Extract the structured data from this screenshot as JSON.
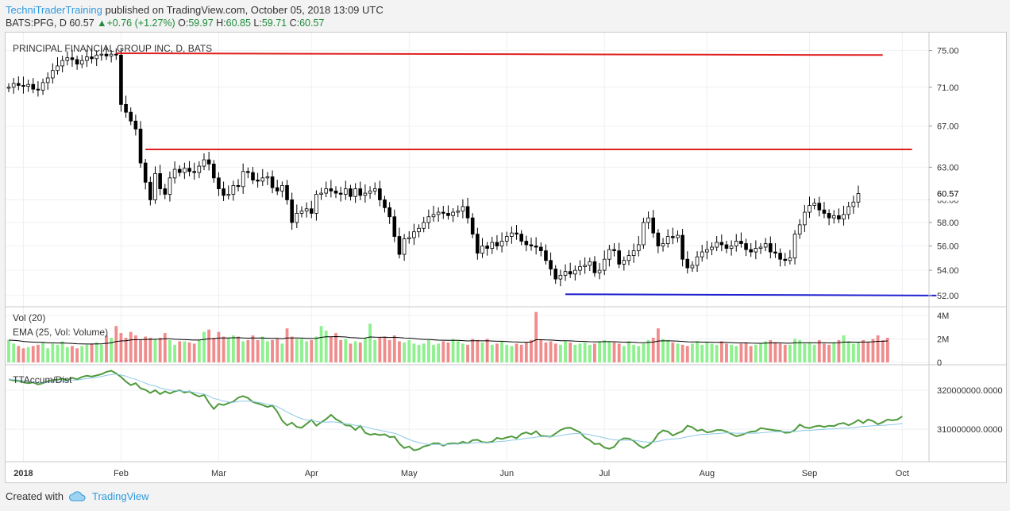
{
  "header": {
    "author": "TechniTraderTraining",
    "published_text": " published on TradingView.com, October 05, 2018 13:09 UTC",
    "symbol": "BATS:PFG, D",
    "last": "60.57",
    "change": "+0.76 (+1.27%)",
    "o_label": "O:",
    "o_value": "59.97",
    "h_label": "H:",
    "h_value": "60.85",
    "l_label": "L:",
    "l_value": "59.71",
    "c_label": "C:",
    "c_value": "60.57",
    "up_icon": "triangle-up-icon"
  },
  "footer": {
    "created_with": "Created with",
    "brand": "TradingView",
    "icon": "cloud-icon"
  },
  "colors": {
    "up": "#ffffff",
    "down": "#000000",
    "wick": "#000000",
    "vol_up": "#8ef08e",
    "vol_down": "#f08c8c",
    "accum": "#4e9a3a",
    "accum_ma": "#8cc8e8",
    "resistance": "#e02020",
    "support": "#2020d0",
    "ema": "#000000"
  },
  "chart_data": [
    {
      "type": "candlestick",
      "title": "PRINCIPAL FINANCIAL GROUP INC, D, BATS",
      "last_price_label": "60.57",
      "y_ticks": [
        "75.00",
        "71.00",
        "67.00",
        "63.00",
        "60.00",
        "58.00",
        "56.00",
        "54.00",
        "52.00"
      ],
      "y_scale": "log",
      "ylim": [
        51.5,
        76.5
      ],
      "grid": true,
      "x_tick_labels": [
        "2018",
        "Feb",
        "Mar",
        "Apr",
        "May",
        "Jun",
        "Jul",
        "Aug",
        "Sep",
        "Oct"
      ],
      "x_tick_index": [
        3,
        23,
        43,
        62,
        82,
        102,
        122,
        143,
        164,
        183
      ],
      "close": [
        71.0,
        71.4,
        71.2,
        71.1,
        71.3,
        70.8,
        70.7,
        71.5,
        72.0,
        72.8,
        73.3,
        73.9,
        74.2,
        74.0,
        73.5,
        73.9,
        74.3,
        74.1,
        74.5,
        74.6,
        74.4,
        74.6,
        74.5,
        69.2,
        68.4,
        67.5,
        66.7,
        63.4,
        61.6,
        60.0,
        62.4,
        61.0,
        60.5,
        62.0,
        62.8,
        62.5,
        62.9,
        62.6,
        62.5,
        63.1,
        63.7,
        63.3,
        62.0,
        61.0,
        60.4,
        60.5,
        61.3,
        61.2,
        62.6,
        62.5,
        61.8,
        61.7,
        62.0,
        62.1,
        61.1,
        60.8,
        61.3,
        60.0,
        58.0,
        58.8,
        59.0,
        59.2,
        58.8,
        60.5,
        60.6,
        61.0,
        60.8,
        60.6,
        60.5,
        61.0,
        60.3,
        61.0,
        60.4,
        60.6,
        60.8,
        61.0,
        60.0,
        59.3,
        58.5,
        56.8,
        55.3,
        56.6,
        56.7,
        57.2,
        57.5,
        58.0,
        58.5,
        58.7,
        58.9,
        58.8,
        58.6,
        58.9,
        59.0,
        59.4,
        58.4,
        57.0,
        55.4,
        56.0,
        55.8,
        56.3,
        56.0,
        56.4,
        56.8,
        57.1,
        57.0,
        56.4,
        56.1,
        56.0,
        55.9,
        55.6,
        54.8,
        54.1,
        53.3,
        53.6,
        53.9,
        53.7,
        54.0,
        54.3,
        54.4,
        54.7,
        53.8,
        54.0,
        54.9,
        55.7,
        55.6,
        54.5,
        54.8,
        55.2,
        55.6,
        56.1,
        58.0,
        58.4,
        57.1,
        56.0,
        56.2,
        56.8,
        56.7,
        56.9,
        54.9,
        54.2,
        54.4,
        55.1,
        55.5,
        55.7,
        55.9,
        56.3,
        56.1,
        55.8,
        56.0,
        56.4,
        56.2,
        55.7,
        55.5,
        55.8,
        55.9,
        56.2,
        55.5,
        55.4,
        54.9,
        54.8,
        55.0,
        57.0,
        57.8,
        58.9,
        59.5,
        59.7,
        59.1,
        58.8,
        58.4,
        58.6,
        58.3,
        58.7,
        59.4,
        59.8,
        60.57
      ],
      "volume_panel": {
        "title": "Vol (20)",
        "ema_label": "EMA (25, Vol: Volume)",
        "y_ticks": [
          "4M",
          "2M",
          "0"
        ],
        "ylim": [
          0,
          4200000
        ],
        "values": [
          1.9,
          1.6,
          1.4,
          1.2,
          1.3,
          1.4,
          1.5,
          1.7,
          1.2,
          1.6,
          1.5,
          1.8,
          1.3,
          1.4,
          1.2,
          1.4,
          1.5,
          1.6,
          1.7,
          1.5,
          2.3,
          2.1,
          3.1,
          2.5,
          2.1,
          2.6,
          2.3,
          1.9,
          2.2,
          2.1,
          2.0,
          2.1,
          2.5,
          1.9,
          1.5,
          1.8,
          1.8,
          1.7,
          1.6,
          1.9,
          2.6,
          2.8,
          2.1,
          2.6,
          2.2,
          2.1,
          2.3,
          2.2,
          1.8,
          1.9,
          2.3,
          1.9,
          2.2,
          1.8,
          1.9,
          2.0,
          1.6,
          2.9,
          2.2,
          2.0,
          2.0,
          1.8,
          1.9,
          2.2,
          3.1,
          2.7,
          2.2,
          2.5,
          1.9,
          2.0,
          1.6,
          1.8,
          1.7,
          2.1,
          3.3,
          1.9,
          2.1,
          2.2,
          1.9,
          2.3,
          1.8,
          1.7,
          1.9,
          1.6,
          1.5,
          1.6,
          1.9,
          1.5,
          1.6,
          1.8,
          1.7,
          2.0,
          1.8,
          1.6,
          1.5,
          2.0,
          1.9,
          1.7,
          2.0,
          1.5,
          1.6,
          1.8,
          1.5,
          1.4,
          1.6,
          1.5,
          1.7,
          1.9,
          4.3,
          1.9,
          1.7,
          1.8,
          1.6,
          1.5,
          1.8,
          1.7,
          1.5,
          1.6,
          1.7,
          1.5,
          1.6,
          1.8,
          1.9,
          1.8,
          1.7,
          1.6,
          1.4,
          1.8,
          1.5,
          1.4,
          1.6,
          1.9,
          2.1,
          2.9,
          2.0,
          1.9,
          1.7,
          1.6,
          1.5,
          1.4,
          1.6,
          1.8,
          1.5,
          1.7,
          1.6,
          1.5,
          1.8,
          1.6,
          1.5,
          1.4,
          1.6,
          1.7,
          1.4,
          1.5,
          1.6,
          1.8,
          1.9,
          1.7,
          1.6,
          1.5,
          1.5,
          2.0,
          1.9,
          1.6,
          1.7,
          1.5,
          1.9,
          1.6,
          1.5,
          1.7,
          1.9,
          2.3,
          1.8,
          1.6,
          1.7,
          1.9,
          1.7,
          2.0,
          2.3,
          1.9,
          2.1
        ]
      }
    },
    {
      "type": "line",
      "title": "TTAccum/Dist",
      "y_ticks": [
        "320000000.0000",
        "310000000.0000"
      ],
      "ylim": [
        302500000,
        325500000
      ],
      "grid": true,
      "series": [
        {
          "values": [
            322.8,
            322.5,
            322.4,
            322.0,
            321.8,
            322.0,
            321.5,
            321.8,
            322.3,
            322.6,
            322.7,
            323.0,
            322.5,
            323.2,
            322.8,
            323.4,
            323.7,
            323.5,
            323.8,
            324.1,
            324.7,
            325.0,
            324.3,
            323.4,
            322.2,
            321.3,
            321.8,
            320.5,
            320.1,
            319.3,
            320.0,
            319.0,
            319.7,
            319.2,
            319.7,
            320.0,
            319.4,
            319.7,
            318.9,
            318.4,
            318.8,
            316.8,
            315.2,
            316.5,
            316.2,
            316.7,
            317.1,
            318.1,
            318.5,
            318.0,
            317.0,
            316.6,
            316.2,
            315.7,
            316.1,
            314.5,
            312.2,
            311.0,
            311.7,
            310.6,
            310.4,
            311.4,
            312.4,
            310.9,
            311.8,
            312.6,
            313.7,
            312.6,
            311.9,
            311.0,
            310.9,
            309.8,
            310.9,
            309.1,
            308.6,
            308.8,
            308.5,
            308.7,
            308.0,
            308.1,
            306.3,
            305.2,
            305.6,
            304.6,
            304.9,
            305.6,
            305.9,
            306.4,
            306.4,
            305.8,
            306.3,
            306.4,
            306.3,
            306.8,
            306.4,
            307.2,
            307.3,
            306.7,
            306.6,
            306.8,
            307.8,
            307.5,
            307.9,
            308.2,
            307.7,
            308.8,
            309.2,
            308.7,
            309.5,
            308.3,
            308.2,
            308.1,
            308.9,
            309.8,
            310.3,
            310.4,
            309.8,
            309.2,
            307.9,
            307.2,
            306.2,
            306.3,
            305.3,
            305.0,
            305.5,
            307.1,
            307.7,
            307.6,
            307.0,
            305.9,
            305.2,
            305.9,
            306.9,
            308.8,
            309.7,
            309.4,
            308.4,
            309.0,
            309.5,
            310.9,
            310.5,
            309.6,
            309.9,
            309.2,
            309.4,
            309.8,
            309.8,
            309.4,
            308.8,
            308.2,
            308.5,
            309.0,
            309.4,
            309.5,
            310.3,
            310.1,
            309.9,
            309.7,
            309.6,
            309.1,
            309.2,
            309.8,
            311.2,
            310.5,
            310.3,
            310.7,
            310.9,
            310.6,
            310.9,
            310.8,
            311.4,
            311.6,
            311.0,
            311.6,
            312.4,
            311.6,
            312.5,
            312.1,
            311.3,
            311.8,
            312.5,
            312.3,
            312.5,
            313.3
          ]
        },
        {
          "values": [
            322.8,
            322.7,
            322.6,
            322.4,
            322.2,
            322.1,
            321.9,
            321.9,
            322.0,
            322.1,
            322.2,
            322.4,
            322.4,
            322.6,
            322.6,
            322.8,
            323.0,
            323.1,
            323.3,
            323.5,
            323.8,
            324.0,
            324.1,
            323.9,
            323.6,
            323.1,
            322.8,
            322.3,
            321.8,
            321.3,
            321.1,
            320.6,
            320.3,
            320.0,
            319.9,
            319.8,
            319.7,
            319.7,
            319.4,
            319.2,
            319.0,
            318.5,
            317.9,
            317.6,
            317.2,
            317.0,
            316.9,
            317.1,
            317.2,
            317.2,
            317.1,
            316.9,
            316.7,
            316.4,
            316.2,
            315.8,
            315.1,
            314.4,
            313.8,
            313.2,
            312.7,
            312.4,
            312.3,
            312.0,
            311.8,
            311.8,
            311.9,
            311.8,
            311.6,
            311.4,
            311.3,
            311.0,
            310.9,
            310.6,
            310.3,
            310.0,
            309.7,
            309.5,
            309.2,
            309.0,
            308.5,
            307.9,
            307.4,
            306.9,
            306.6,
            306.3,
            306.1,
            306.1,
            306.1,
            306.0,
            306.1,
            306.2,
            306.2,
            306.3,
            306.4,
            306.5,
            306.6,
            306.6,
            306.6,
            306.6,
            306.8,
            306.9,
            307.0,
            307.2,
            307.3,
            307.5,
            307.7,
            307.8,
            308.0,
            308.1,
            308.1,
            308.1,
            308.2,
            308.4,
            308.6,
            308.8,
            308.9,
            308.9,
            308.8,
            308.6,
            308.3,
            308.1,
            307.8,
            307.5,
            307.3,
            307.2,
            307.2,
            307.2,
            307.2,
            307.0,
            306.8,
            306.7,
            306.7,
            306.9,
            307.2,
            307.4,
            307.5,
            307.6,
            307.8,
            308.1,
            308.3,
            308.5,
            308.7,
            308.7,
            308.8,
            308.9,
            309.0,
            309.1,
            309.1,
            309.0,
            309.0,
            309.0,
            309.0,
            309.0,
            309.1,
            309.2,
            309.3,
            309.4,
            309.4,
            309.4,
            309.4,
            309.4,
            309.6,
            309.7,
            309.7,
            309.8,
            309.9,
            310.0,
            310.1,
            310.1,
            310.2,
            310.3,
            310.3,
            310.4,
            310.6,
            310.7,
            310.8,
            310.9,
            311.0,
            311.0,
            311.1,
            311.2,
            311.3,
            311.5
          ]
        }
      ]
    }
  ]
}
